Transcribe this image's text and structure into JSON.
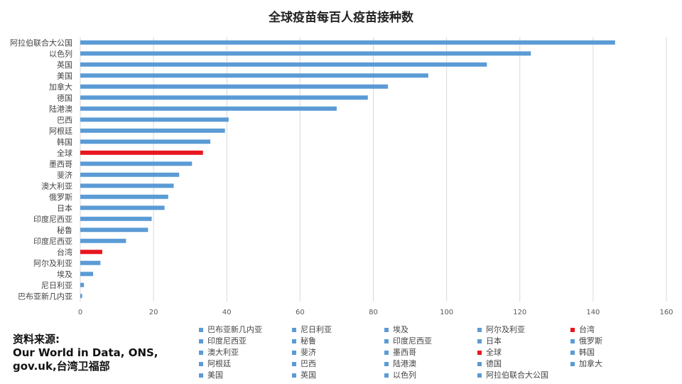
{
  "chart_data": {
    "type": "bar",
    "orientation": "horizontal",
    "title": "全球疫苗每百人疫苗接种数",
    "xlim": [
      0,
      160
    ],
    "xticks": [
      0,
      20,
      40,
      60,
      80,
      100,
      120,
      140,
      160
    ],
    "grid": true,
    "legend_position": "bottom",
    "categories": [
      "阿拉伯联合大公国",
      "以色列",
      "英国",
      "美国",
      "加拿大",
      "德国",
      "陆港澳",
      "巴西",
      "阿根廷",
      "韩国",
      "全球",
      "墨西哥",
      "斐济",
      "澳大利亚",
      "俄罗斯",
      "日本",
      "印度尼西亚",
      "秘鲁",
      "印度尼西亚",
      "台湾",
      "阿尔及利亚",
      "埃及",
      "尼日利亚",
      "巴布亚新几内亚"
    ],
    "values": [
      146,
      123,
      111,
      95,
      84,
      78.5,
      70,
      40.5,
      39.5,
      35.5,
      33.5,
      30.5,
      27,
      25.5,
      24,
      23,
      19.5,
      18.5,
      12.5,
      6,
      5.5,
      3.5,
      1,
      0.5
    ],
    "colors": [
      "#5b9bd5",
      "#5b9bd5",
      "#5b9bd5",
      "#5b9bd5",
      "#5b9bd5",
      "#5b9bd5",
      "#5b9bd5",
      "#5b9bd5",
      "#5b9bd5",
      "#5b9bd5",
      "#e8161e",
      "#5b9bd5",
      "#5b9bd5",
      "#5b9bd5",
      "#5b9bd5",
      "#5b9bd5",
      "#5b9bd5",
      "#5b9bd5",
      "#5b9bd5",
      "#e8161e",
      "#5b9bd5",
      "#5b9bd5",
      "#5b9bd5",
      "#5b9bd5"
    ],
    "legend": [
      {
        "label": "巴布亚新几内亚",
        "color": "#5b9bd5"
      },
      {
        "label": "尼日利亚",
        "color": "#5b9bd5"
      },
      {
        "label": "埃及",
        "color": "#5b9bd5"
      },
      {
        "label": "阿尔及利亚",
        "color": "#5b9bd5"
      },
      {
        "label": "台湾",
        "color": "#e8161e"
      },
      {
        "label": "印度尼西亚",
        "color": "#5b9bd5"
      },
      {
        "label": "秘鲁",
        "color": "#5b9bd5"
      },
      {
        "label": "印度尼西亚",
        "color": "#5b9bd5"
      },
      {
        "label": "日本",
        "color": "#5b9bd5"
      },
      {
        "label": "俄罗斯",
        "color": "#5b9bd5"
      },
      {
        "label": "澳大利亚",
        "color": "#5b9bd5"
      },
      {
        "label": "斐济",
        "color": "#5b9bd5"
      },
      {
        "label": "墨西哥",
        "color": "#5b9bd5"
      },
      {
        "label": "全球",
        "color": "#e8161e"
      },
      {
        "label": "韩国",
        "color": "#5b9bd5"
      },
      {
        "label": "阿根廷",
        "color": "#5b9bd5"
      },
      {
        "label": "巴西",
        "color": "#5b9bd5"
      },
      {
        "label": "陆港澳",
        "color": "#5b9bd5"
      },
      {
        "label": "德国",
        "color": "#5b9bd5"
      },
      {
        "label": "加拿大",
        "color": "#5b9bd5"
      },
      {
        "label": "美国",
        "color": "#5b9bd5"
      },
      {
        "label": "英国",
        "color": "#5b9bd5"
      },
      {
        "label": "以色列",
        "color": "#5b9bd5"
      },
      {
        "label": "阿拉伯联合大公国",
        "color": "#5b9bd5"
      }
    ]
  },
  "source": {
    "line1": "资料来源:",
    "line2": " Our World in Data, ONS,",
    "line3": "gov.uk,台湾卫福部"
  }
}
